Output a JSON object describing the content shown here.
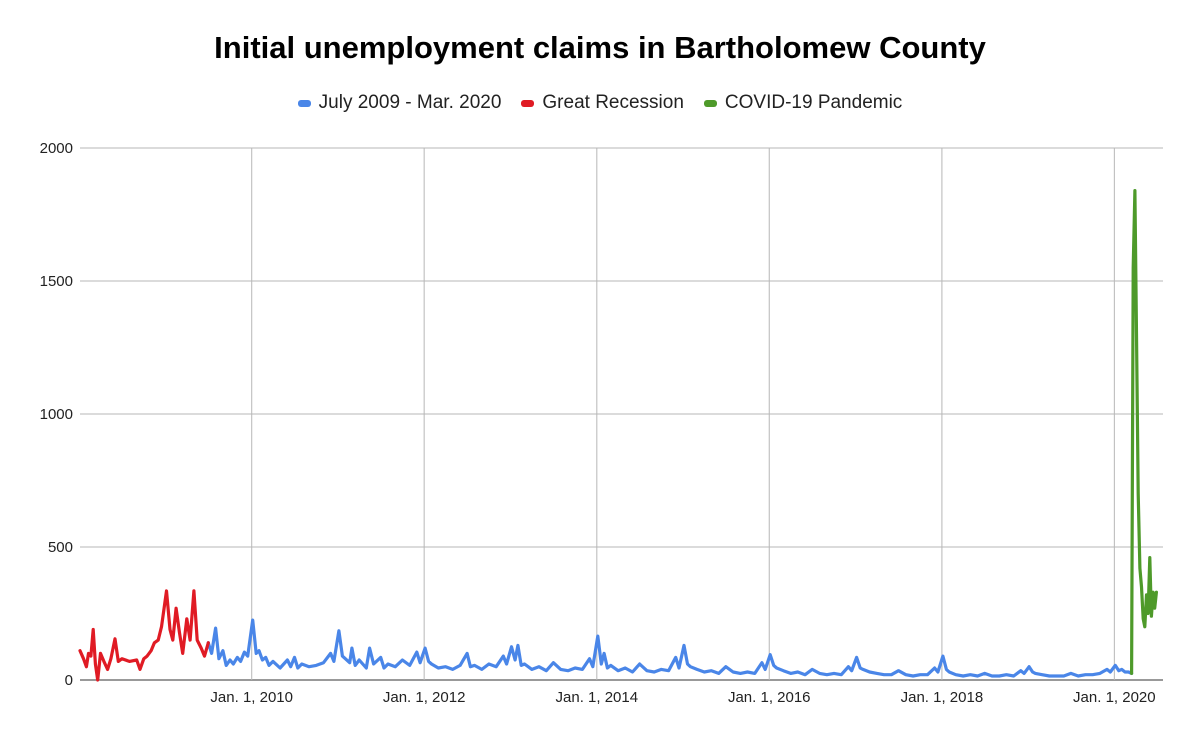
{
  "chart_data": {
    "type": "line",
    "title": "Initial unemployment claims in Bartholomew County",
    "xlabel": "",
    "ylabel": "",
    "ylim": [
      0,
      2000
    ],
    "xlim": [
      "2008-01-05",
      "2020-07-25"
    ],
    "grid": true,
    "legend_position": "top",
    "y_ticks": [
      0,
      500,
      1000,
      1500,
      2000
    ],
    "x_ticks": [
      {
        "date": "2010-01-01",
        "label": "Jan. 1, 2010"
      },
      {
        "date": "2012-01-01",
        "label": "Jan. 1, 2012"
      },
      {
        "date": "2014-01-01",
        "label": "Jan. 1, 2014"
      },
      {
        "date": "2016-01-01",
        "label": "Jan. 1, 2016"
      },
      {
        "date": "2018-01-01",
        "label": "Jan. 1, 2018"
      },
      {
        "date": "2020-01-01",
        "label": "Jan. 1, 2020"
      }
    ],
    "series": [
      {
        "name": "July 2009 - Mar. 2020",
        "color": "#4a86e8",
        "points": [
          [
            "2009-07-01",
            140
          ],
          [
            "2009-07-15",
            100
          ],
          [
            "2009-08-01",
            195
          ],
          [
            "2009-08-15",
            80
          ],
          [
            "2009-09-01",
            110
          ],
          [
            "2009-09-15",
            55
          ],
          [
            "2009-10-01",
            75
          ],
          [
            "2009-10-15",
            60
          ],
          [
            "2009-11-01",
            85
          ],
          [
            "2009-11-15",
            70
          ],
          [
            "2009-12-01",
            105
          ],
          [
            "2009-12-15",
            90
          ],
          [
            "2010-01-05",
            225
          ],
          [
            "2010-01-20",
            100
          ],
          [
            "2010-02-01",
            110
          ],
          [
            "2010-02-15",
            75
          ],
          [
            "2010-03-01",
            85
          ],
          [
            "2010-03-15",
            55
          ],
          [
            "2010-04-01",
            70
          ],
          [
            "2010-05-01",
            45
          ],
          [
            "2010-06-01",
            75
          ],
          [
            "2010-06-15",
            50
          ],
          [
            "2010-07-01",
            85
          ],
          [
            "2010-07-15",
            45
          ],
          [
            "2010-08-01",
            60
          ],
          [
            "2010-09-01",
            50
          ],
          [
            "2010-10-01",
            55
          ],
          [
            "2010-11-01",
            65
          ],
          [
            "2010-12-01",
            100
          ],
          [
            "2010-12-15",
            70
          ],
          [
            "2011-01-05",
            185
          ],
          [
            "2011-01-20",
            90
          ],
          [
            "2011-02-01",
            80
          ],
          [
            "2011-02-20",
            65
          ],
          [
            "2011-03-01",
            120
          ],
          [
            "2011-03-15",
            55
          ],
          [
            "2011-04-01",
            75
          ],
          [
            "2011-05-01",
            45
          ],
          [
            "2011-05-15",
            120
          ],
          [
            "2011-06-01",
            60
          ],
          [
            "2011-07-01",
            85
          ],
          [
            "2011-07-15",
            45
          ],
          [
            "2011-08-01",
            60
          ],
          [
            "2011-09-01",
            50
          ],
          [
            "2011-10-01",
            75
          ],
          [
            "2011-11-01",
            55
          ],
          [
            "2011-12-01",
            105
          ],
          [
            "2011-12-15",
            65
          ],
          [
            "2012-01-05",
            120
          ],
          [
            "2012-01-20",
            70
          ],
          [
            "2012-02-01",
            60
          ],
          [
            "2012-03-01",
            45
          ],
          [
            "2012-04-01",
            50
          ],
          [
            "2012-05-01",
            40
          ],
          [
            "2012-06-01",
            55
          ],
          [
            "2012-07-01",
            100
          ],
          [
            "2012-07-15",
            50
          ],
          [
            "2012-08-01",
            55
          ],
          [
            "2012-09-01",
            40
          ],
          [
            "2012-10-01",
            60
          ],
          [
            "2012-11-01",
            50
          ],
          [
            "2012-12-01",
            90
          ],
          [
            "2012-12-15",
            60
          ],
          [
            "2013-01-05",
            125
          ],
          [
            "2013-01-20",
            75
          ],
          [
            "2013-02-01",
            130
          ],
          [
            "2013-02-15",
            55
          ],
          [
            "2013-03-01",
            60
          ],
          [
            "2013-04-01",
            40
          ],
          [
            "2013-05-01",
            50
          ],
          [
            "2013-06-01",
            35
          ],
          [
            "2013-07-01",
            65
          ],
          [
            "2013-08-01",
            40
          ],
          [
            "2013-09-01",
            35
          ],
          [
            "2013-10-01",
            45
          ],
          [
            "2013-11-01",
            40
          ],
          [
            "2013-12-01",
            80
          ],
          [
            "2013-12-15",
            50
          ],
          [
            "2014-01-05",
            165
          ],
          [
            "2014-01-20",
            60
          ],
          [
            "2014-02-01",
            100
          ],
          [
            "2014-02-15",
            45
          ],
          [
            "2014-03-01",
            55
          ],
          [
            "2014-04-01",
            35
          ],
          [
            "2014-05-01",
            45
          ],
          [
            "2014-06-01",
            30
          ],
          [
            "2014-07-01",
            60
          ],
          [
            "2014-08-01",
            35
          ],
          [
            "2014-09-01",
            30
          ],
          [
            "2014-10-01",
            40
          ],
          [
            "2014-11-01",
            35
          ],
          [
            "2014-12-01",
            85
          ],
          [
            "2014-12-15",
            45
          ],
          [
            "2015-01-05",
            130
          ],
          [
            "2015-01-20",
            60
          ],
          [
            "2015-02-01",
            50
          ],
          [
            "2015-03-01",
            40
          ],
          [
            "2015-04-01",
            30
          ],
          [
            "2015-05-01",
            35
          ],
          [
            "2015-06-01",
            25
          ],
          [
            "2015-07-01",
            50
          ],
          [
            "2015-08-01",
            30
          ],
          [
            "2015-09-01",
            25
          ],
          [
            "2015-10-01",
            30
          ],
          [
            "2015-11-01",
            25
          ],
          [
            "2015-12-01",
            65
          ],
          [
            "2015-12-15",
            40
          ],
          [
            "2016-01-05",
            95
          ],
          [
            "2016-01-20",
            55
          ],
          [
            "2016-02-01",
            45
          ],
          [
            "2016-03-01",
            35
          ],
          [
            "2016-04-01",
            25
          ],
          [
            "2016-05-01",
            30
          ],
          [
            "2016-06-01",
            20
          ],
          [
            "2016-07-01",
            40
          ],
          [
            "2016-08-01",
            25
          ],
          [
            "2016-09-01",
            20
          ],
          [
            "2016-10-01",
            25
          ],
          [
            "2016-11-01",
            20
          ],
          [
            "2016-12-01",
            50
          ],
          [
            "2016-12-15",
            35
          ],
          [
            "2017-01-05",
            85
          ],
          [
            "2017-01-20",
            45
          ],
          [
            "2017-02-01",
            40
          ],
          [
            "2017-03-01",
            30
          ],
          [
            "2017-04-01",
            25
          ],
          [
            "2017-05-01",
            20
          ],
          [
            "2017-06-01",
            20
          ],
          [
            "2017-07-01",
            35
          ],
          [
            "2017-08-01",
            20
          ],
          [
            "2017-09-01",
            15
          ],
          [
            "2017-10-01",
            20
          ],
          [
            "2017-11-01",
            20
          ],
          [
            "2017-12-01",
            45
          ],
          [
            "2017-12-15",
            30
          ],
          [
            "2018-01-05",
            90
          ],
          [
            "2018-01-20",
            40
          ],
          [
            "2018-02-01",
            30
          ],
          [
            "2018-03-01",
            20
          ],
          [
            "2018-04-01",
            15
          ],
          [
            "2018-05-01",
            20
          ],
          [
            "2018-06-01",
            15
          ],
          [
            "2018-07-01",
            25
          ],
          [
            "2018-08-01",
            15
          ],
          [
            "2018-09-01",
            15
          ],
          [
            "2018-10-01",
            20
          ],
          [
            "2018-11-01",
            15
          ],
          [
            "2018-12-01",
            35
          ],
          [
            "2018-12-15",
            25
          ],
          [
            "2019-01-05",
            50
          ],
          [
            "2019-01-20",
            30
          ],
          [
            "2019-02-01",
            25
          ],
          [
            "2019-03-01",
            20
          ],
          [
            "2019-04-01",
            15
          ],
          [
            "2019-05-01",
            15
          ],
          [
            "2019-06-01",
            15
          ],
          [
            "2019-07-01",
            25
          ],
          [
            "2019-08-01",
            15
          ],
          [
            "2019-09-01",
            20
          ],
          [
            "2019-10-01",
            20
          ],
          [
            "2019-11-01",
            25
          ],
          [
            "2019-12-01",
            40
          ],
          [
            "2019-12-15",
            30
          ],
          [
            "2020-01-05",
            55
          ],
          [
            "2020-01-20",
            35
          ],
          [
            "2020-02-01",
            40
          ],
          [
            "2020-02-15",
            30
          ],
          [
            "2020-03-01",
            30
          ],
          [
            "2020-03-14",
            25
          ]
        ]
      },
      {
        "name": "Great Recession",
        "color": "#e01b24",
        "points": [
          [
            "2008-01-05",
            110
          ],
          [
            "2008-01-20",
            80
          ],
          [
            "2008-02-01",
            50
          ],
          [
            "2008-02-10",
            100
          ],
          [
            "2008-02-20",
            90
          ],
          [
            "2008-03-01",
            190
          ],
          [
            "2008-03-10",
            60
          ],
          [
            "2008-03-20",
            0
          ],
          [
            "2008-04-01",
            100
          ],
          [
            "2008-04-15",
            70
          ],
          [
            "2008-05-01",
            40
          ],
          [
            "2008-05-15",
            80
          ],
          [
            "2008-06-01",
            155
          ],
          [
            "2008-06-15",
            70
          ],
          [
            "2008-07-01",
            80
          ],
          [
            "2008-08-01",
            70
          ],
          [
            "2008-09-01",
            75
          ],
          [
            "2008-09-15",
            40
          ],
          [
            "2008-10-01",
            80
          ],
          [
            "2008-10-15",
            90
          ],
          [
            "2008-11-01",
            110
          ],
          [
            "2008-11-15",
            140
          ],
          [
            "2008-12-01",
            150
          ],
          [
            "2008-12-15",
            200
          ],
          [
            "2009-01-05",
            335
          ],
          [
            "2009-01-20",
            190
          ],
          [
            "2009-02-01",
            150
          ],
          [
            "2009-02-15",
            270
          ],
          [
            "2009-03-01",
            180
          ],
          [
            "2009-03-15",
            100
          ],
          [
            "2009-04-01",
            230
          ],
          [
            "2009-04-15",
            150
          ],
          [
            "2009-05-01",
            335
          ],
          [
            "2009-05-15",
            150
          ],
          [
            "2009-06-01",
            120
          ],
          [
            "2009-06-15",
            90
          ],
          [
            "2009-07-01",
            140
          ]
        ]
      },
      {
        "name": "COVID-19 Pandemic",
        "color": "#4e9a2a",
        "points": [
          [
            "2020-03-14",
            25
          ],
          [
            "2020-03-21",
            1550
          ],
          [
            "2020-03-28",
            1840
          ],
          [
            "2020-04-04",
            1300
          ],
          [
            "2020-04-11",
            700
          ],
          [
            "2020-04-18",
            420
          ],
          [
            "2020-04-25",
            350
          ],
          [
            "2020-05-02",
            230
          ],
          [
            "2020-05-09",
            200
          ],
          [
            "2020-05-16",
            320
          ],
          [
            "2020-05-23",
            250
          ],
          [
            "2020-05-30",
            460
          ],
          [
            "2020-06-06",
            240
          ],
          [
            "2020-06-13",
            330
          ],
          [
            "2020-06-20",
            270
          ],
          [
            "2020-06-27",
            330
          ]
        ]
      }
    ]
  }
}
